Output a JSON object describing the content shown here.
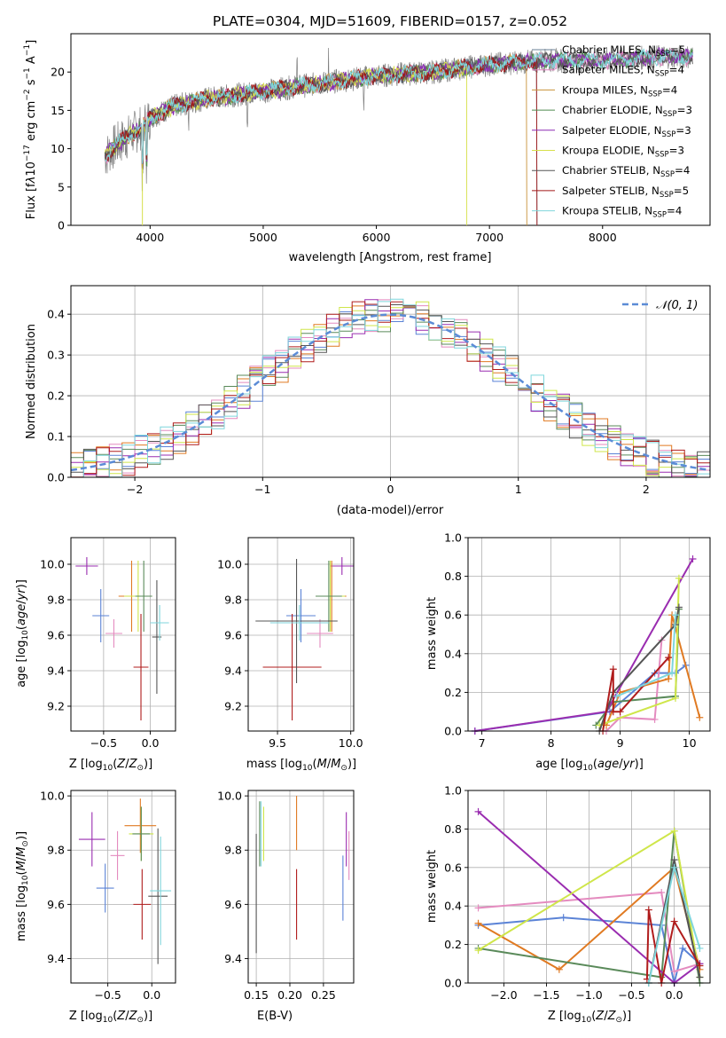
{
  "title": "PLATE=0304, MJD=51609, FIBERID=0157, z=0.052",
  "colors": {
    "Chabrier MILES": "#6a7f94",
    "Salpeter MILES": "#e07fbf",
    "Kroupa MILES": "#c8923a",
    "Chabrier ELODIE": "#4f8a4f",
    "Salpeter ELODIE": "#8b2bb3",
    "Kroupa ELODIE": "#d7e04a",
    "Chabrier STELIB": "#555555",
    "Salpeter STELIB": "#a01818",
    "Kroupa STELIB": "#7fd6dc",
    "blue": "#5b83d6",
    "pink": "#e48bbf",
    "orange": "#e07a22",
    "green": "#5a8a5a",
    "purple": "#9a2db0",
    "yellow": "#cfe64a",
    "gray": "#555555",
    "red": "#b01c1c",
    "cyan": "#7fd6dc"
  },
  "legend_spectrum": [
    {
      "label": "Chabrier MILES, N",
      "sub": "SSP",
      "tail": "=5",
      "color": "#6a7f94"
    },
    {
      "label": "Salpeter MILES, N",
      "sub": "SSP",
      "tail": "=4",
      "color": "#e07fbf"
    },
    {
      "label": "Kroupa MILES, N",
      "sub": "SSP",
      "tail": "=4",
      "color": "#c8923a"
    },
    {
      "label": "Chabrier ELODIE, N",
      "sub": "SSP",
      "tail": "=3",
      "color": "#4f8a4f"
    },
    {
      "label": "Salpeter ELODIE, N",
      "sub": "SSP",
      "tail": "=3",
      "color": "#8b2bb3"
    },
    {
      "label": "Kroupa ELODIE, N",
      "sub": "SSP",
      "tail": "=3",
      "color": "#d7e04a"
    },
    {
      "label": "Chabrier STELIB, N",
      "sub": "SSP",
      "tail": "=4",
      "color": "#555555"
    },
    {
      "label": "Salpeter STELIB, N",
      "sub": "SSP",
      "tail": "=5",
      "color": "#a01818"
    },
    {
      "label": "Kroupa STELIB, N",
      "sub": "SSP",
      "tail": "=4",
      "color": "#7fd6dc"
    }
  ],
  "chart_data": [
    {
      "id": "spectrum",
      "type": "line",
      "title": "PLATE=0304, MJD=51609, FIBERID=0157, z=0.052",
      "xlabel": "wavelength [Angstrom, rest frame]",
      "ylabel": "Flux [fλ10⁻¹⁷ erg cm⁻² s⁻¹ A⁻¹]",
      "xlim": [
        3300,
        8950
      ],
      "ylim": [
        0,
        25
      ],
      "xticks": [
        4000,
        5000,
        6000,
        7000,
        8000
      ],
      "yticks": [
        0,
        5,
        10,
        15,
        20
      ],
      "grid": false,
      "legend_position": "upper right",
      "data_trend_x": [
        3600,
        3700,
        3800,
        3900,
        4000,
        4200,
        4500,
        5000,
        5500,
        6000,
        6500,
        7000,
        7500,
        8000,
        8500,
        8800
      ],
      "data_trend_y": [
        9,
        10.5,
        11.5,
        12.5,
        14,
        15.5,
        16.5,
        17.5,
        18.5,
        19.5,
        20,
        21,
        21.5,
        21.5,
        22,
        22
      ]
    },
    {
      "id": "residuals",
      "type": "bar",
      "xlabel": "(data-model)/error",
      "ylabel": "Normed distribution",
      "xlim": [
        -2.5,
        2.5
      ],
      "ylim": [
        0,
        0.47
      ],
      "xticks": [
        -2,
        -1,
        0,
        1,
        2
      ],
      "yticks": [
        0.0,
        0.1,
        0.2,
        0.3,
        0.4
      ],
      "grid": true,
      "legend_position": "upper right",
      "legend": "𝒩(0, 1)",
      "bin_width": 0.1
    },
    {
      "id": "age-vs-Z",
      "type": "scatter",
      "xlabel": "Z [log₁₀(Z/Z⊙)]",
      "ylabel": "age  [log₁₀(age/yr)]",
      "xlim": [
        -0.85,
        0.27
      ],
      "ylim": [
        9.06,
        10.15
      ],
      "xticks": [
        -0.5,
        0.0
      ],
      "yticks": [
        9.2,
        9.4,
        9.6,
        9.8,
        10.0
      ],
      "points": [
        {
          "x": -0.68,
          "y": 9.99,
          "xerr": 0.12,
          "yerr": 0.05,
          "color": "purple"
        },
        {
          "x": -0.53,
          "y": 9.71,
          "xerr": 0.09,
          "yerr": 0.15,
          "color": "blue"
        },
        {
          "x": -0.39,
          "y": 9.61,
          "xerr": 0.09,
          "yerr": 0.08,
          "color": "pink"
        },
        {
          "x": -0.2,
          "y": 9.82,
          "xerr": 0.14,
          "yerr": 0.2,
          "color": "orange"
        },
        {
          "x": -0.13,
          "y": 9.82,
          "xerr": 0.15,
          "yerr": 0.2,
          "color": "yellow"
        },
        {
          "x": -0.07,
          "y": 9.82,
          "xerr": 0.09,
          "yerr": 0.2,
          "color": "green"
        },
        {
          "x": -0.1,
          "y": 9.42,
          "xerr": 0.08,
          "yerr": 0.3,
          "color": "red"
        },
        {
          "x": 0.07,
          "y": 9.59,
          "xerr": 0.05,
          "yerr": 0.32,
          "color": "gray"
        },
        {
          "x": 0.1,
          "y": 9.67,
          "xerr": 0.1,
          "yerr": 0.1,
          "color": "cyan"
        }
      ]
    },
    {
      "id": "age-vs-mass",
      "type": "scatter",
      "xlabel": "mass [log₁₀(M/M⊙)]",
      "ylabel": "",
      "xlim": [
        9.3,
        10.02
      ],
      "ylim": [
        9.06,
        10.15
      ],
      "xticks": [
        9.5,
        10.0
      ],
      "yticks": [
        9.2,
        9.4,
        9.6,
        9.8,
        10.0
      ],
      "points": [
        {
          "x": 9.94,
          "y": 9.99,
          "xerr": 0.08,
          "yerr": 0.05,
          "color": "purple"
        },
        {
          "x": 9.66,
          "y": 9.71,
          "xerr": 0.1,
          "yerr": 0.15,
          "color": "blue"
        },
        {
          "x": 9.79,
          "y": 9.61,
          "xerr": 0.09,
          "yerr": 0.08,
          "color": "pink"
        },
        {
          "x": 9.87,
          "y": 9.82,
          "xerr": 0.1,
          "yerr": 0.2,
          "color": "orange"
        },
        {
          "x": 9.86,
          "y": 9.82,
          "xerr": 0.1,
          "yerr": 0.2,
          "color": "yellow"
        },
        {
          "x": 9.85,
          "y": 9.82,
          "xerr": 0.09,
          "yerr": 0.2,
          "color": "green"
        },
        {
          "x": 9.6,
          "y": 9.42,
          "xerr": 0.2,
          "yerr": 0.3,
          "color": "red"
        },
        {
          "x": 9.63,
          "y": 9.68,
          "xerr": 0.28,
          "yerr": 0.35,
          "color": "gray"
        },
        {
          "x": 9.65,
          "y": 9.67,
          "xerr": 0.2,
          "yerr": 0.1,
          "color": "cyan"
        }
      ]
    },
    {
      "id": "weight-vs-age",
      "type": "line",
      "xlabel": "age  [log₁₀(age/yr)]",
      "ylabel": "mass weight",
      "xlim": [
        6.8,
        10.3
      ],
      "ylim": [
        0,
        1.0
      ],
      "xticks": [
        7,
        8,
        9,
        10
      ],
      "yticks": [
        0.0,
        0.2,
        0.4,
        0.6,
        0.8,
        1.0
      ],
      "grid": true,
      "series": [
        {
          "color": "blue",
          "x": [
            6.9,
            8.85,
            9.5,
            9.8,
            9.95
          ],
          "y": [
            0.0,
            0.1,
            0.3,
            0.3,
            0.34
          ]
        },
        {
          "color": "pink",
          "x": [
            8.8,
            9.0,
            9.5,
            9.6
          ],
          "y": [
            0.0,
            0.07,
            0.06,
            0.47
          ]
        },
        {
          "color": "orange",
          "x": [
            8.8,
            9.0,
            9.7,
            9.75,
            10.15
          ],
          "y": [
            0.03,
            0.2,
            0.27,
            0.6,
            0.07
          ]
        },
        {
          "color": "green",
          "x": [
            8.65,
            8.9,
            9.8,
            9.85
          ],
          "y": [
            0.03,
            0.15,
            0.18,
            0.63
          ]
        },
        {
          "color": "purple",
          "x": [
            6.9,
            8.8,
            10.05
          ],
          "y": [
            0.0,
            0.1,
            0.89
          ]
        },
        {
          "color": "yellow",
          "x": [
            8.7,
            9.8,
            9.85
          ],
          "y": [
            0.03,
            0.17,
            0.79
          ]
        },
        {
          "color": "gray",
          "x": [
            8.7,
            8.9,
            9.8,
            9.85
          ],
          "y": [
            0.0,
            0.2,
            0.55,
            0.64
          ]
        },
        {
          "color": "red",
          "x": [
            8.75,
            8.9,
            8.9,
            9.0,
            9.7
          ],
          "y": [
            0.0,
            0.32,
            0.1,
            0.1,
            0.38
          ]
        },
        {
          "color": "cyan",
          "x": [
            8.95,
            9.75,
            9.8
          ],
          "y": [
            0.18,
            0.3,
            0.6
          ]
        }
      ]
    },
    {
      "id": "mass-vs-Z",
      "type": "scatter",
      "xlabel": "Z [log₁₀(Z/Z⊙)]",
      "ylabel": "mass [log₁₀(M/M⊙)]",
      "xlim": [
        -0.92,
        0.27
      ],
      "ylim": [
        9.31,
        10.02
      ],
      "xticks": [
        -0.5,
        0.0
      ],
      "yticks": [
        9.4,
        9.6,
        9.8,
        10.0
      ],
      "points": [
        {
          "x": -0.68,
          "y": 9.84,
          "xerr": 0.15,
          "yerr": 0.1,
          "color": "purple"
        },
        {
          "x": -0.53,
          "y": 9.66,
          "xerr": 0.1,
          "yerr": 0.09,
          "color": "blue"
        },
        {
          "x": -0.39,
          "y": 9.78,
          "xerr": 0.08,
          "yerr": 0.09,
          "color": "pink"
        },
        {
          "x": -0.13,
          "y": 9.89,
          "xerr": 0.18,
          "yerr": 0.1,
          "color": "orange"
        },
        {
          "x": -0.12,
          "y": 9.86,
          "xerr": 0.14,
          "yerr": 0.1,
          "color": "yellow"
        },
        {
          "x": -0.12,
          "y": 9.86,
          "xerr": 0.1,
          "yerr": 0.1,
          "color": "green"
        },
        {
          "x": -0.11,
          "y": 9.6,
          "xerr": 0.1,
          "yerr": 0.13,
          "color": "red"
        },
        {
          "x": 0.07,
          "y": 9.63,
          "xerr": 0.11,
          "yerr": 0.25,
          "color": "gray"
        },
        {
          "x": 0.1,
          "y": 9.65,
          "xerr": 0.12,
          "yerr": 0.2,
          "color": "cyan"
        }
      ]
    },
    {
      "id": "mass-vs-EBV",
      "type": "scatter",
      "xlabel": "E(B-V)",
      "ylabel": "",
      "xlim": [
        0.138,
        0.295
      ],
      "ylim": [
        9.31,
        10.02
      ],
      "xticks": [
        0.15,
        0.2,
        0.25
      ],
      "yticks": [
        9.4,
        9.6,
        9.8,
        10.0
      ],
      "points": [
        {
          "x": 0.15,
          "y": 9.64,
          "yerr": 0.22,
          "color": "gray"
        },
        {
          "x": 0.155,
          "y": 9.86,
          "yerr": 0.12,
          "color": "green"
        },
        {
          "x": 0.157,
          "y": 9.86,
          "yerr": 0.12,
          "color": "cyan"
        },
        {
          "x": 0.161,
          "y": 9.86,
          "yerr": 0.1,
          "color": "yellow"
        },
        {
          "x": 0.21,
          "y": 9.6,
          "yerr": 0.13,
          "color": "red"
        },
        {
          "x": 0.21,
          "y": 9.9,
          "yerr": 0.1,
          "color": "orange"
        },
        {
          "x": 0.279,
          "y": 9.66,
          "yerr": 0.12,
          "color": "blue"
        },
        {
          "x": 0.284,
          "y": 9.84,
          "yerr": 0.1,
          "color": "purple"
        },
        {
          "x": 0.288,
          "y": 9.78,
          "yerr": 0.09,
          "color": "pink"
        }
      ]
    },
    {
      "id": "weight-vs-Z",
      "type": "line",
      "xlabel": "Z [log₁₀(Z/Z⊙)]",
      "ylabel": "mass weight",
      "xlim": [
        -2.42,
        0.42
      ],
      "ylim": [
        0,
        1.0
      ],
      "xticks": [
        -2.0,
        -1.5,
        -1.0,
        -0.5,
        0.0
      ],
      "yticks": [
        0.0,
        0.2,
        0.4,
        0.6,
        0.8,
        1.0
      ],
      "grid": true,
      "series": [
        {
          "color": "blue",
          "x": [
            -2.3,
            -1.3,
            -0.15,
            0.0,
            0.1,
            0.3
          ],
          "y": [
            0.3,
            0.34,
            0.3,
            0.0,
            0.18,
            0.1
          ]
        },
        {
          "color": "pink",
          "x": [
            -2.3,
            -0.15,
            0.0,
            0.3
          ],
          "y": [
            0.39,
            0.47,
            0.06,
            0.1
          ]
        },
        {
          "color": "orange",
          "x": [
            -2.3,
            -1.35,
            -0.0,
            0.3
          ],
          "y": [
            0.31,
            0.07,
            0.6,
            0.07
          ]
        },
        {
          "color": "green",
          "x": [
            -2.3,
            -0.15,
            0.0,
            0.3
          ],
          "y": [
            0.18,
            0.03,
            0.79,
            0.0
          ]
        },
        {
          "color": "purple",
          "x": [
            -2.3,
            0.0,
            0.3
          ],
          "y": [
            0.89,
            0.0,
            0.1
          ]
        },
        {
          "color": "yellow",
          "x": [
            -2.3,
            0.0,
            0.3
          ],
          "y": [
            0.17,
            0.79,
            0.03
          ]
        },
        {
          "color": "gray",
          "x": [
            -0.3,
            0.0,
            0.3
          ],
          "y": [
            0.0,
            0.64,
            0.03
          ]
        },
        {
          "color": "red",
          "x": [
            -0.32,
            -0.3,
            -0.15,
            0.0,
            0.3
          ],
          "y": [
            0.02,
            0.38,
            0.0,
            0.32,
            0.09
          ]
        },
        {
          "color": "cyan",
          "x": [
            -0.3,
            0.0,
            0.3
          ],
          "y": [
            0.0,
            0.6,
            0.18
          ]
        }
      ]
    }
  ]
}
